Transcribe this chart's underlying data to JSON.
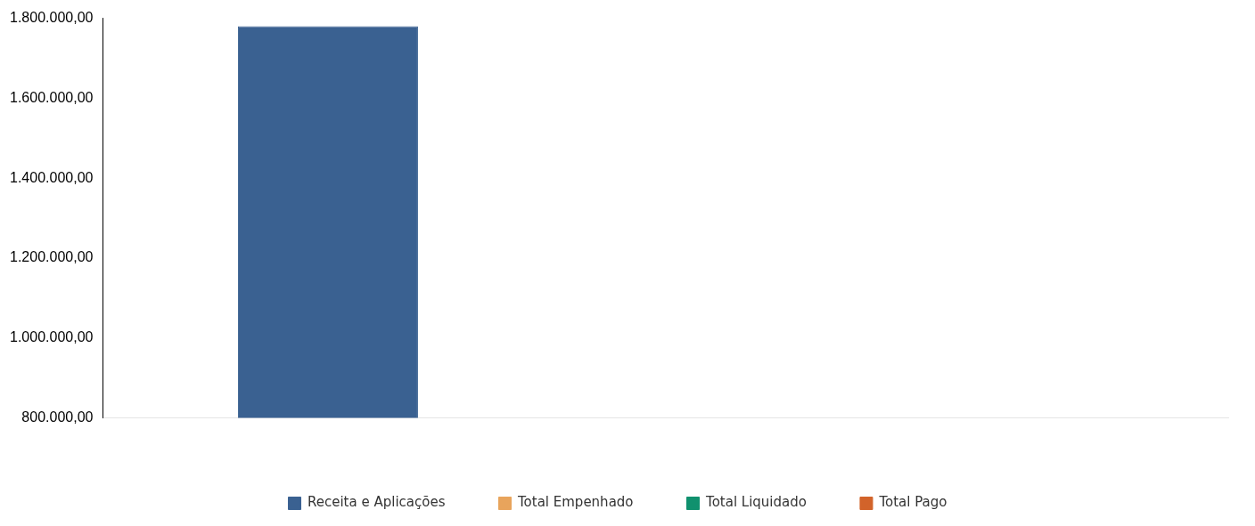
{
  "chart_data": {
    "type": "bar",
    "categories": [
      null
    ],
    "series": [
      {
        "name": "Receita e Aplicações",
        "color": "#3a6191",
        "values": [
          1780000
        ]
      },
      {
        "name": "Total Empenhado",
        "color": "#e8a45c",
        "values": [
          null
        ]
      },
      {
        "name": "Total Liquidado",
        "color": "#10916e",
        "values": [
          null
        ]
      },
      {
        "name": "Total Pago",
        "color": "#d2632a",
        "values": [
          null
        ]
      }
    ],
    "ylim": [
      800000,
      1800000
    ],
    "yticks": [
      {
        "value": 800000,
        "label": "800.000,00"
      },
      {
        "value": 1000000,
        "label": "1.000.000,00"
      },
      {
        "value": 1200000,
        "label": "1.200.000,00"
      },
      {
        "value": 1400000,
        "label": "1.400.000,00"
      },
      {
        "value": 1600000,
        "label": "1.600.000,00"
      },
      {
        "value": 1800000,
        "label": "1.800.000,00"
      }
    ],
    "grid": false,
    "legend": "bottom"
  }
}
